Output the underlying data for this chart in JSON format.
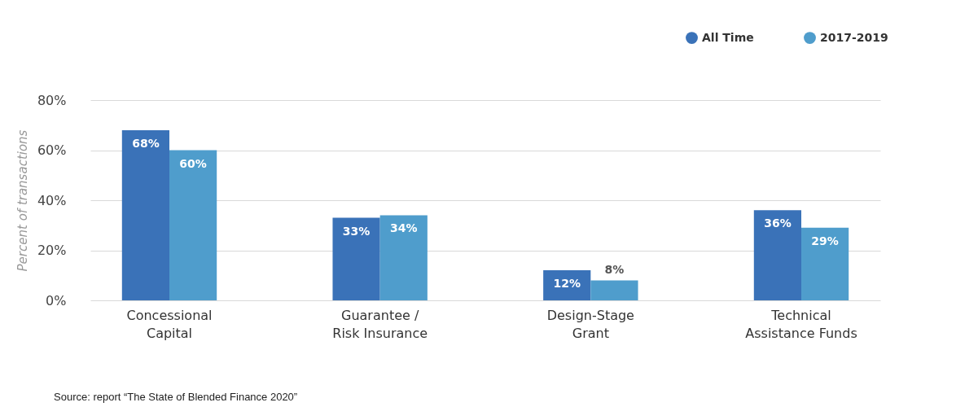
{
  "chart_data": {
    "type": "bar",
    "ylabel": "Percent of transactions",
    "categories": [
      "Concessional Capital",
      "Guarantee / Risk Insurance",
      "Design-Stage Grant",
      "Technical Assistance Funds"
    ],
    "series": [
      {
        "name": "All Time",
        "color": "#3a72b8",
        "values": [
          68,
          33,
          12,
          36
        ],
        "value_labels": [
          "68%",
          "33%",
          "12%",
          "36%"
        ]
      },
      {
        "name": "2017-2019",
        "color": "#4f9dcc",
        "values": [
          60,
          34,
          8,
          29
        ],
        "value_labels": [
          "60%",
          "34%",
          "8%",
          "29%"
        ]
      }
    ],
    "ylim": [
      0,
      80
    ],
    "yticks": [
      {
        "value": 0,
        "label": "0%"
      },
      {
        "value": 20,
        "label": "20%"
      },
      {
        "value": 40,
        "label": "40%"
      },
      {
        "value": 60,
        "label": "60%"
      },
      {
        "value": 80,
        "label": "80%"
      }
    ],
    "grid": "y",
    "legend": "top right",
    "annotations": [
      "Source: report “The State of  Blended Finance 2020”"
    ]
  }
}
